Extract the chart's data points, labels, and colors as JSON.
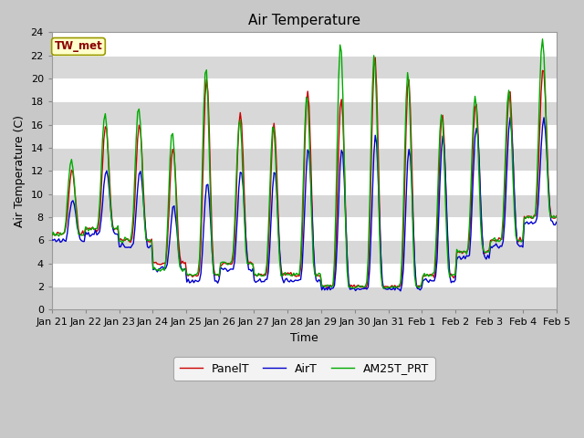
{
  "title": "Air Temperature",
  "ylabel": "Air Temperature (C)",
  "xlabel": "Time",
  "ylim": [
    0,
    24
  ],
  "yticks": [
    0,
    2,
    4,
    6,
    8,
    10,
    12,
    14,
    16,
    18,
    20,
    22,
    24
  ],
  "annotation_text": "TW_met",
  "annotation_color": "#8B0000",
  "annotation_bg": "#FFFFCC",
  "annotation_border": "#999900",
  "bg_color": "#CCCCCC",
  "white_stripe": "#E8E8E8",
  "line_colors": {
    "PanelT": "#CC0000",
    "AirT": "#0000CC",
    "AM25T_PRT": "#00AA00"
  },
  "line_width": 1.0,
  "x_tick_labels": [
    "Jan 21",
    "Jan 22",
    "Jan 23",
    "Jan 24",
    "Jan 25",
    "Jan 26",
    "Jan 27",
    "Jan 28",
    "Jan 29",
    "Jan 30",
    "Jan 31",
    "Feb 1",
    "Feb 2",
    "Feb 3",
    "Feb 4",
    "Feb 5"
  ],
  "n_days": 15,
  "points_per_day": 24
}
